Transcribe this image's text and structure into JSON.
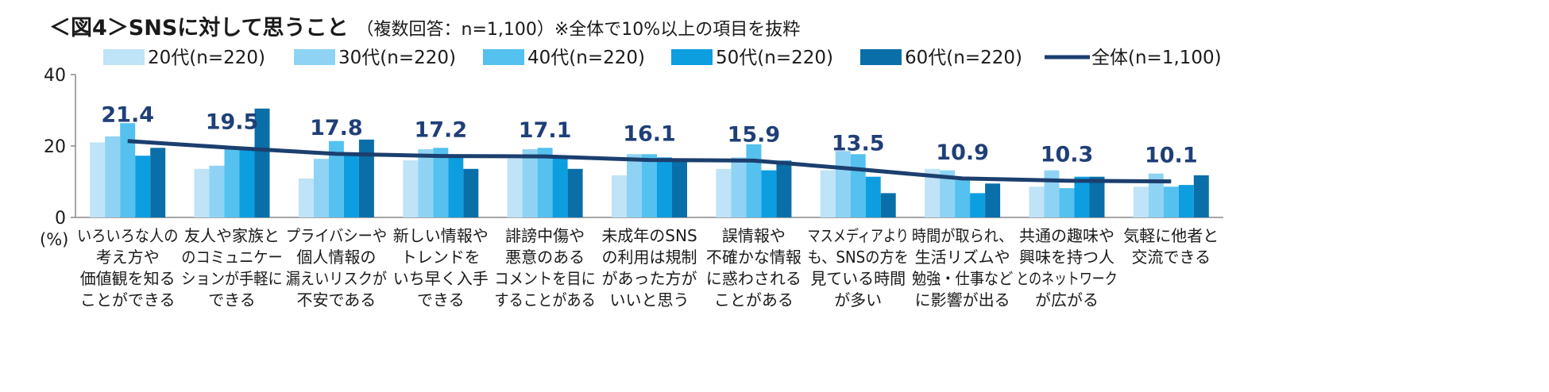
{
  "chart_data": {
    "type": "bar",
    "title": "＜図4＞SNSに対して思うこと",
    "subtitle": "（複数回答：n=1,100）※全体で10%以上の項目を抜粋",
    "ylabel": "(%)",
    "ylim": [
      0,
      40
    ],
    "yticks": [
      "0",
      "20",
      "40"
    ],
    "grid": false,
    "legend_position": "top",
    "categories": [
      [
        "いろいろな人の",
        "考え方や",
        "価値観を知る",
        "ことができる"
      ],
      [
        "友人や家族と",
        "のコミュニケー",
        "ションが手軽に",
        "できる"
      ],
      [
        "プライバシーや",
        "個人情報の",
        "漏えいリスクが",
        "不安である"
      ],
      [
        "新しい情報や",
        "トレンドを",
        "いち早く入手",
        "できる"
      ],
      [
        "誹謗中傷や",
        "悪意のある",
        "コメントを目に",
        "することがある"
      ],
      [
        "未成年のSNS",
        "の利用は規制",
        "があった方が",
        "いいと思う"
      ],
      [
        "誤情報や",
        "不確かな情報",
        "に惑わされる",
        "ことがある"
      ],
      [
        "マスメディアより",
        "も、SNSの方を",
        "見ている時間",
        "が多い"
      ],
      [
        "時間が取られ、",
        "生活リズムや",
        "勉強・仕事など",
        "に影響が出る"
      ],
      [
        "共通の趣味や",
        "興味を持つ人",
        "とのネットワーク",
        "が広がる"
      ],
      [
        "気軽に他者と",
        "交流できる"
      ]
    ],
    "series": [
      {
        "name": "20代(n=220)",
        "color": "#bfe3f7",
        "values": [
          21.0,
          13.6,
          10.9,
          16.0,
          16.5,
          11.8,
          13.6,
          13.2,
          13.6,
          8.6,
          8.6
        ]
      },
      {
        "name": "30代(n=220)",
        "color": "#8fd3f4",
        "values": [
          22.7,
          14.5,
          16.4,
          19.1,
          19.1,
          17.7,
          16.8,
          18.6,
          13.2,
          13.2,
          12.3
        ]
      },
      {
        "name": "40代(n=220)",
        "color": "#55c1ee",
        "values": [
          26.4,
          19.5,
          21.4,
          19.5,
          19.5,
          17.7,
          20.5,
          17.7,
          10.5,
          8.2,
          8.6
        ]
      },
      {
        "name": "50代(n=220)",
        "color": "#0d9ee0",
        "values": [
          17.3,
          19.5,
          18.2,
          17.3,
          16.8,
          16.8,
          13.2,
          11.4,
          6.8,
          11.4,
          9.1
        ]
      },
      {
        "name": "60代(n=220)",
        "color": "#0a6fa8",
        "values": [
          19.5,
          30.5,
          21.8,
          13.6,
          13.6,
          16.4,
          15.9,
          6.8,
          9.5,
          11.4,
          11.8
        ]
      }
    ],
    "line": {
      "name": "全体(n=1,100)",
      "color": "#1b3f6e",
      "values": [
        21.4,
        19.5,
        17.8,
        17.2,
        17.1,
        16.1,
        15.9,
        13.5,
        10.9,
        10.3,
        10.1
      ]
    },
    "line_labels": [
      "21.4",
      "19.5",
      "17.8",
      "17.2",
      "17.1",
      "16.1",
      "15.9",
      "13.5",
      "10.9",
      "10.3",
      "10.1"
    ]
  }
}
